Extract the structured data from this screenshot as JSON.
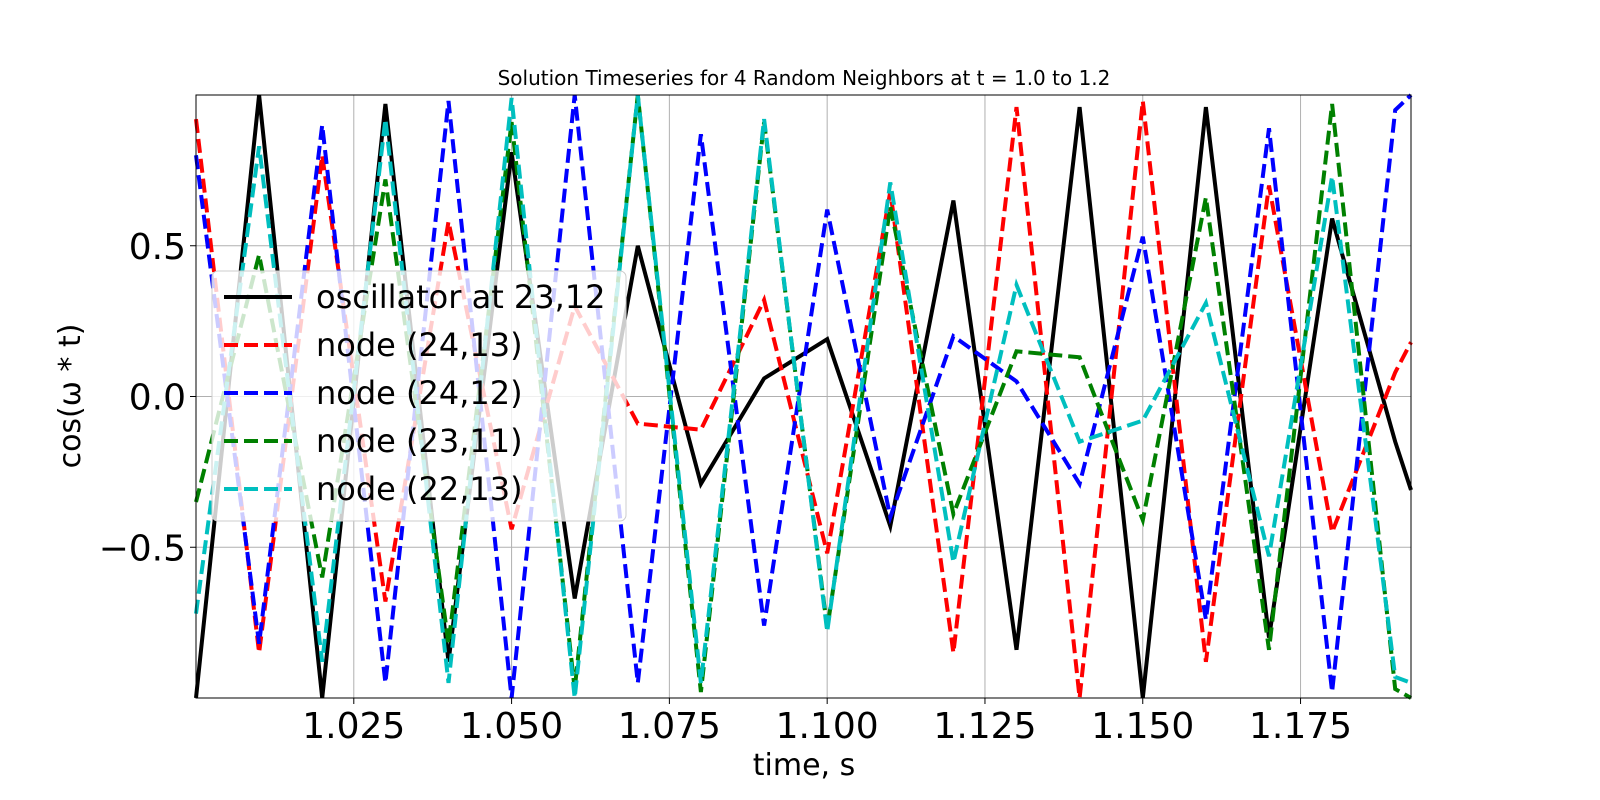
{
  "chart_data": {
    "type": "line",
    "title": "Solution Timeseries for 4 Random Neighbors at t = 1.0 to 1.2",
    "xlabel": "time, s",
    "ylabel": "cos(ω * t)",
    "xlim": [
      1.0,
      1.1925
    ],
    "ylim": [
      -1.0,
      1.0
    ],
    "grid": true,
    "legend_position": "center-left",
    "x_ticks": [
      1.025,
      1.05,
      1.075,
      1.1,
      1.125,
      1.15,
      1.175
    ],
    "x_tick_labels": [
      "1.025",
      "1.050",
      "1.075",
      "1.100",
      "1.125",
      "1.150",
      "1.175"
    ],
    "y_ticks": [
      -0.5,
      0.0,
      0.5
    ],
    "y_tick_labels": [
      "−0.5",
      "0.0",
      "0.5"
    ],
    "x": [
      1.0,
      1.01,
      1.02,
      1.03,
      1.04,
      1.05,
      1.06,
      1.07,
      1.08,
      1.09,
      1.1,
      1.11,
      1.12,
      1.13,
      1.14,
      1.15,
      1.16,
      1.17,
      1.18,
      1.19,
      1.1925
    ],
    "series": [
      {
        "name": "oscillator at 23,12",
        "color": "#000000",
        "dashed": false,
        "values": [
          -1.0,
          1.0,
          -1.0,
          0.97,
          -0.88,
          0.81,
          -0.67,
          0.5,
          -0.29,
          0.06,
          0.19,
          -0.43,
          0.65,
          -0.84,
          0.96,
          -1.0,
          0.96,
          -0.8,
          0.59,
          -0.15,
          -0.31
        ]
      },
      {
        "name": "node (24,13)",
        "color": "#ff0000",
        "dashed": false,
        "values": [
          0.92,
          -0.85,
          0.8,
          -0.68,
          0.58,
          -0.44,
          0.3,
          -0.09,
          -0.11,
          0.32,
          -0.52,
          0.68,
          -0.85,
          0.96,
          -1.0,
          0.98,
          -0.88,
          0.7,
          -0.45,
          0.08,
          0.18
        ]
      },
      {
        "name": "node (24,12)",
        "color": "#0000ff",
        "dashed": false,
        "values": [
          0.8,
          -0.82,
          0.9,
          -0.95,
          0.98,
          -1.0,
          1.0,
          -0.95,
          0.87,
          -0.76,
          0.62,
          -0.4,
          0.2,
          0.05,
          -0.29,
          0.53,
          -0.74,
          0.89,
          -0.98,
          0.95,
          1.0
        ]
      },
      {
        "name": "node (23,11)",
        "color": "#008000",
        "dashed": false,
        "values": [
          -0.35,
          0.47,
          -0.6,
          0.72,
          -0.82,
          0.91,
          -0.97,
          1.0,
          -0.98,
          0.91,
          -0.77,
          0.63,
          -0.39,
          0.15,
          0.13,
          -0.41,
          0.66,
          -0.84,
          0.97,
          -0.97,
          -1.0
        ]
      },
      {
        "name": "node (22,13)",
        "color": "#00bfbf",
        "dashed": false,
        "values": [
          -0.72,
          0.83,
          -0.88,
          0.92,
          -0.95,
          0.99,
          -1.0,
          1.0,
          -0.95,
          0.92,
          -0.78,
          0.71,
          -0.55,
          0.37,
          -0.15,
          -0.08,
          0.31,
          -0.53,
          0.73,
          -0.93,
          -0.95
        ]
      }
    ]
  }
}
